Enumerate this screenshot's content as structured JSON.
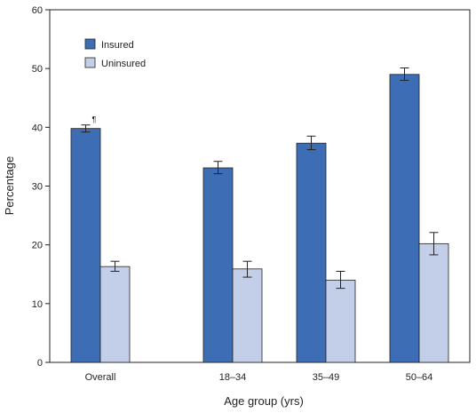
{
  "chart_data": {
    "type": "bar",
    "title": "",
    "xlabel": "Age group (yrs)",
    "ylabel": "Percentage",
    "ylim": [
      0,
      60
    ],
    "yticks": [
      0,
      10,
      20,
      30,
      40,
      50,
      60
    ],
    "categories": [
      "Overall",
      "18–34",
      "35–49",
      "50–64"
    ],
    "series": [
      {
        "name": "Insured",
        "color": "#3d6db5",
        "values": [
          39.8,
          33.1,
          37.3,
          49.0
        ],
        "error_low": [
          39.2,
          32.1,
          36.2,
          48.0
        ],
        "error_high": [
          40.4,
          34.2,
          38.5,
          50.1
        ]
      },
      {
        "name": "Uninsured",
        "color": "#c3cfe9",
        "values": [
          16.3,
          15.9,
          14.0,
          20.2
        ],
        "error_low": [
          15.5,
          14.5,
          12.6,
          18.3
        ],
        "error_high": [
          17.2,
          17.2,
          15.5,
          22.1
        ]
      }
    ],
    "annotations": [
      {
        "category": "Overall",
        "series": "Insured",
        "text": "¶"
      }
    ],
    "legend_position": "top-left",
    "grid": false
  }
}
